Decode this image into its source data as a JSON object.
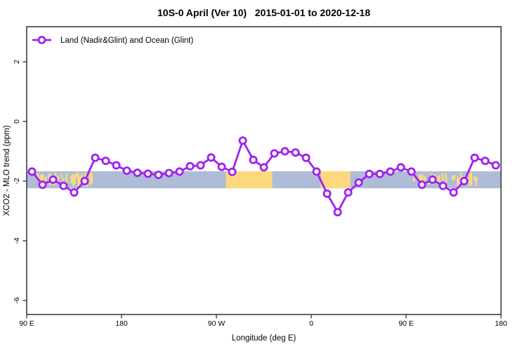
{
  "title": "10S-0 April (Ver 10)   2015-01-01 to 2020-12-18",
  "legend": {
    "label": "Land (Nadir&Glint) and Ocean (Glint)",
    "marker": "open-circle-on-line",
    "color": "#A020F0"
  },
  "chart_data": {
    "type": "line",
    "title": "10S-0 April (Ver 10)  2015-01-01 to 2020-12-18",
    "xlabel": "Longitude (deg E)",
    "ylabel": "XCO2 - MLO trend (ppm)",
    "xlim": [
      90,
      540
    ],
    "ylim": [
      -6.5,
      3.2
    ],
    "grid": false,
    "legend_position": "top-left-inside",
    "x_ticks": [
      {
        "lon": 90,
        "label": "90 E"
      },
      {
        "lon": 180,
        "label": "180"
      },
      {
        "lon": 270,
        "label": "90 W"
      },
      {
        "lon": 360,
        "label": "0"
      },
      {
        "lon": 450,
        "label": "90 E"
      },
      {
        "lon": 540,
        "label": "180"
      }
    ],
    "y_ticks": [
      {
        "value": 2,
        "label": "2"
      },
      {
        "value": 0,
        "label": "0"
      },
      {
        "value": -2,
        "label": "-2"
      },
      {
        "value": -4,
        "label": "-4"
      },
      {
        "value": -6,
        "label": "-6"
      }
    ],
    "series": [
      {
        "name": "Land (Nadir&Glint) and Ocean (Glint)",
        "color": "#A020F0",
        "marker": "open-circle",
        "x": [
          95,
          105,
          115,
          125,
          135,
          145,
          155,
          165,
          175,
          185,
          195,
          205,
          215,
          225,
          235,
          245,
          255,
          265,
          275,
          285,
          295,
          305,
          315,
          325,
          335,
          345,
          355,
          365,
          375,
          385,
          395,
          405,
          415,
          425,
          435,
          445,
          455,
          465,
          475,
          485,
          495,
          505,
          515,
          525,
          535
        ],
        "y": [
          -1.68,
          -2.12,
          -1.95,
          -2.16,
          -2.38,
          -2.0,
          -1.22,
          -1.32,
          -1.47,
          -1.65,
          -1.72,
          -1.75,
          -1.79,
          -1.73,
          -1.68,
          -1.5,
          -1.47,
          -1.21,
          -1.52,
          -1.69,
          -0.64,
          -1.29,
          -1.54,
          -1.07,
          -1.0,
          -1.04,
          -1.22,
          -1.68,
          -2.42,
          -3.04,
          -2.38,
          -2.05,
          -1.76,
          -1.76,
          -1.68,
          -1.54,
          -1.68,
          -2.12,
          -1.95,
          -2.16,
          -2.38,
          -2.0,
          -1.22,
          -1.32,
          -1.47
        ]
      }
    ],
    "map_band": {
      "description": "world map strip of the 10S-0 latitude band drawn behind the curve",
      "ocean_color": "#AEBCD8",
      "land_color": "#FDD87E",
      "y_top_value": -1.67,
      "y_bottom_value": -2.24,
      "land_segments": [
        {
          "from": 95,
          "to": 106,
          "style": "patchy",
          "density": 0.5,
          "name": "Sumatra"
        },
        {
          "from": 107,
          "to": 117,
          "style": "patchy",
          "density": 0.55,
          "name": "Java-Borneo"
        },
        {
          "from": 119,
          "to": 125,
          "style": "patchy",
          "density": 0.5,
          "name": "Sulawesi"
        },
        {
          "from": 127,
          "to": 152,
          "style": "patchy",
          "density": 0.75,
          "name": "New Guinea"
        },
        {
          "from": 154,
          "to": 158,
          "style": "patchy",
          "density": 0.4,
          "name": "Solomon Is"
        },
        {
          "from": 279,
          "to": 323,
          "style": "solid",
          "density": 1.0,
          "name": "South America"
        },
        {
          "from": 369,
          "to": 397,
          "style": "solid",
          "density": 1.0,
          "name": "Africa"
        },
        {
          "from": 455,
          "to": 466,
          "style": "patchy",
          "density": 0.5,
          "name": "Sumatra (wrap)"
        },
        {
          "from": 467,
          "to": 477,
          "style": "patchy",
          "density": 0.55,
          "name": "Java-Borneo (wrap)"
        },
        {
          "from": 479,
          "to": 485,
          "style": "patchy",
          "density": 0.5,
          "name": "Sulawesi (wrap)"
        },
        {
          "from": 487,
          "to": 512,
          "style": "patchy",
          "density": 0.75,
          "name": "New Guinea (wrap)"
        },
        {
          "from": 514,
          "to": 518,
          "style": "patchy",
          "density": 0.4,
          "name": "Solomon Is (wrap)"
        }
      ]
    }
  },
  "style_colors": {
    "series": "#A020F0",
    "marker_fill": "#FFFFFF",
    "frame": "#3D3D3D",
    "ocean": "#AEBCD8",
    "land": "#FDD87E"
  }
}
